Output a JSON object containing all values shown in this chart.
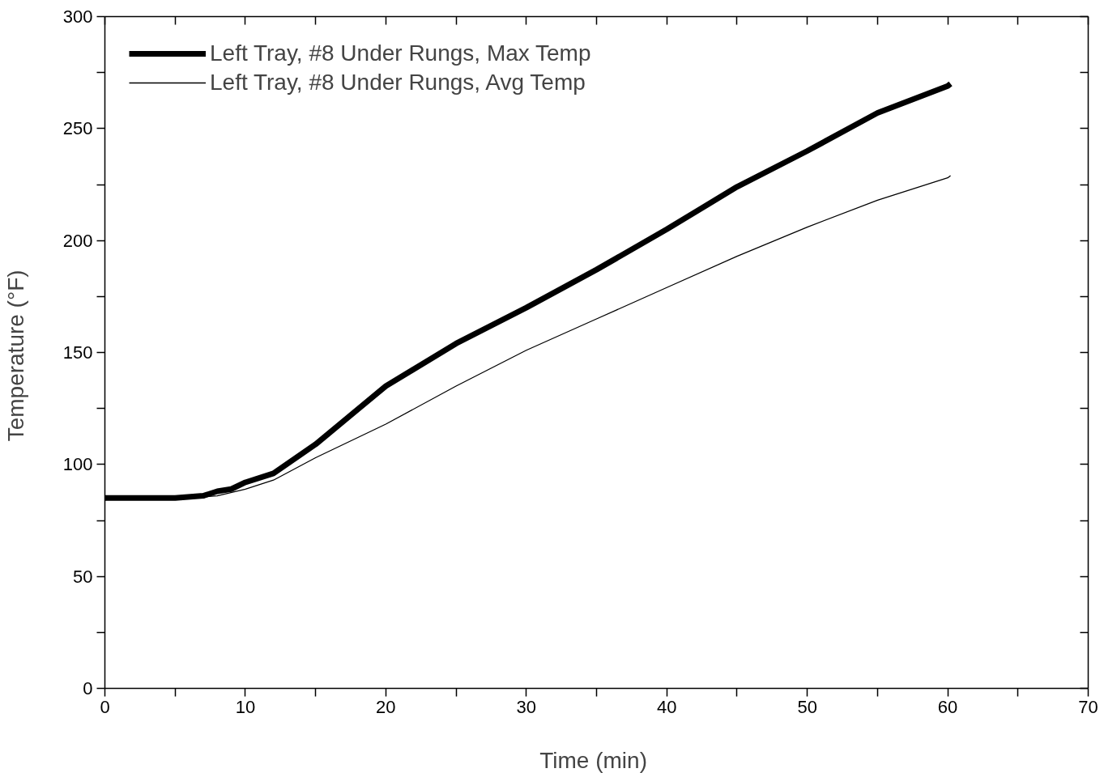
{
  "chart_data": {
    "type": "line",
    "xlabel": "Time  (min)",
    "ylabel": "Temperature  (°F)",
    "xlim": [
      0,
      70
    ],
    "ylim": [
      0,
      300
    ],
    "xticks": [
      0,
      {
        "value": 5,
        "label": null
      },
      10,
      {
        "value": 15,
        "label": null
      },
      20,
      {
        "value": 25,
        "label": null
      },
      30,
      {
        "value": 35,
        "label": null
      },
      40,
      {
        "value": 45,
        "label": null
      },
      50,
      {
        "value": 55,
        "label": null
      },
      60,
      {
        "value": 65,
        "label": null
      },
      70
    ],
    "yticks": [
      0,
      {
        "value": 25,
        "label": null
      },
      50,
      {
        "value": 75,
        "label": null
      },
      100,
      {
        "value": 125,
        "label": null
      },
      150,
      {
        "value": 175,
        "label": null
      },
      200,
      {
        "value": 225,
        "label": null
      },
      250,
      {
        "value": 275,
        "label": null
      },
      300
    ],
    "grid": false,
    "legend": "top left",
    "marker": "none",
    "line_style": "solid",
    "series": [
      {
        "name": "Left Tray, #8 Under Rungs, Max Temp",
        "color": "#000000",
        "x": [
          0,
          5,
          7,
          8,
          9,
          10,
          12,
          15,
          20,
          25,
          30,
          35,
          40,
          45,
          50,
          55,
          60,
          60.2
        ],
        "values": [
          85,
          85,
          86,
          88,
          89,
          92,
          96,
          109,
          135,
          154,
          170,
          187,
          205,
          224,
          240,
          257,
          269,
          270
        ]
      },
      {
        "name": "Left Tray, #8 Under Rungs, Avg Temp",
        "color": "#000000",
        "x": [
          0,
          5,
          7,
          8,
          10,
          12,
          15,
          20,
          25,
          30,
          35,
          40,
          45,
          50,
          55,
          60,
          60.2
        ],
        "values": [
          85,
          85,
          85.5,
          86,
          89,
          93,
          103,
          118,
          135,
          151,
          165,
          179,
          193,
          206,
          218,
          228,
          229
        ]
      }
    ]
  }
}
